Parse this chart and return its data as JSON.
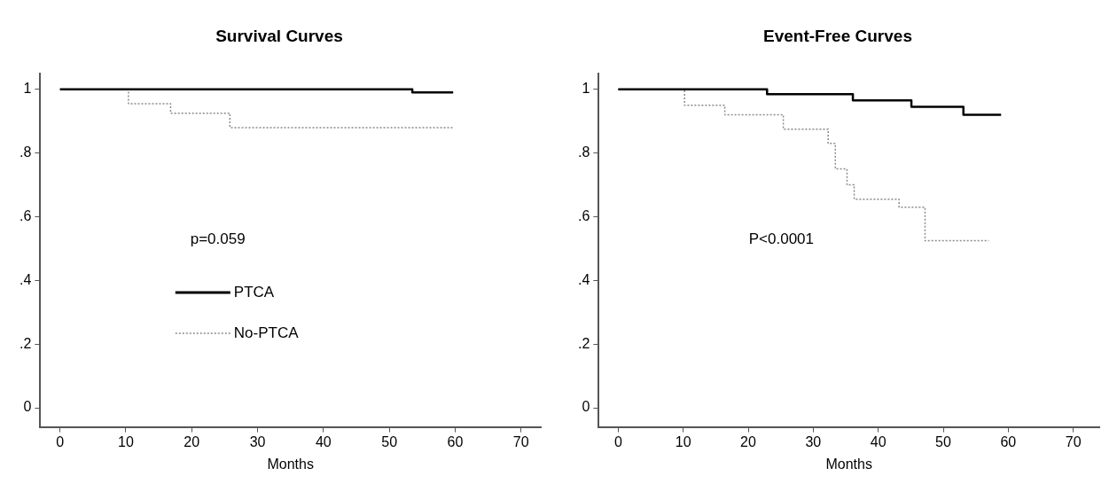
{
  "chart_data": [
    {
      "type": "step",
      "title": "Survival Curves",
      "xlabel": "Months",
      "xlim": [
        -3,
        73
      ],
      "xticks": [
        {
          "value": 0,
          "label": "0"
        },
        10,
        20,
        30,
        40,
        50,
        60,
        70
      ],
      "ylim": [
        -0.06,
        1.05
      ],
      "yticks": [
        {
          "value": 0,
          "label": "0"
        },
        {
          "value": 0.2,
          "label": ".2"
        },
        {
          "value": 0.4,
          "label": ".4"
        },
        {
          "value": 0.6,
          "label": ".6"
        },
        {
          "value": 0.8,
          "label": ".8"
        },
        1
      ],
      "grid": false,
      "marker": "none",
      "legend": "center",
      "annotations": [
        "p=0.059"
      ],
      "series": [
        {
          "name": "PTCA",
          "color": "#000000",
          "line_style": "solid",
          "x": [
            0,
            53.5,
            59.7
          ],
          "values": [
            1,
            0.99,
            0.99
          ]
        },
        {
          "name": "No-PTCA",
          "color": "#8a8a8a",
          "line_style": "dotted",
          "x": [
            0,
            10.4,
            16.8,
            25.8,
            59.7
          ],
          "values": [
            1,
            0.955,
            0.925,
            0.88,
            0.88
          ]
        }
      ]
    },
    {
      "type": "step",
      "title": "Event-Free Curves",
      "xlabel": "Months",
      "xlim": [
        -3,
        74
      ],
      "xticks": [
        {
          "value": 0,
          "label": "0"
        },
        10,
        20,
        30,
        40,
        50,
        60,
        70
      ],
      "ylim": [
        -0.06,
        1.05
      ],
      "yticks": [
        {
          "value": 0,
          "label": "0"
        },
        {
          "value": 0.2,
          "label": ".2"
        },
        {
          "value": 0.4,
          "label": ".4"
        },
        {
          "value": 0.6,
          "label": ".6"
        },
        {
          "value": 0.8,
          "label": ".8"
        },
        1
      ],
      "grid": false,
      "marker": "none",
      "annotations": [
        "P<0.0001"
      ],
      "series": [
        {
          "color": "#000000",
          "line_style": "solid",
          "x": [
            0,
            22.9,
            36.1,
            45.1,
            53.1,
            58.9
          ],
          "values": [
            1,
            0.985,
            0.965,
            0.945,
            0.92,
            0.92
          ]
        },
        {
          "color": "#8a8a8a",
          "line_style": "dotted",
          "x": [
            0,
            10.2,
            16.4,
            25.4,
            32.3,
            33.4,
            35.2,
            36.3,
            43.2,
            47.2,
            57
          ],
          "values": [
            1,
            0.95,
            0.92,
            0.875,
            0.83,
            0.75,
            0.7,
            0.655,
            0.63,
            0.525,
            0.525
          ]
        }
      ]
    }
  ]
}
